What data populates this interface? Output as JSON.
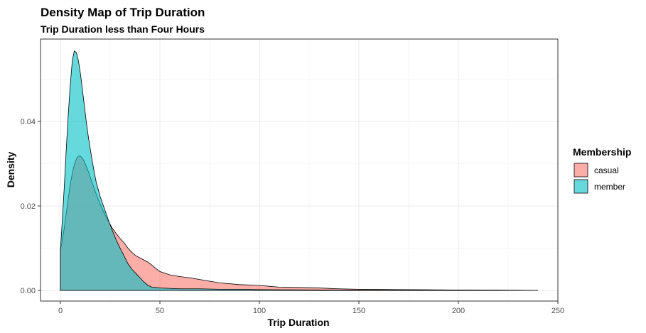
{
  "chart_data": {
    "type": "area",
    "title": "Density Map of Trip Duration",
    "subtitle": "Trip Duration less than Four Hours",
    "xlabel": "Trip Duration",
    "ylabel": "Density",
    "xlim": [
      -10,
      250
    ],
    "ylim": [
      -0.0025,
      0.0595
    ],
    "x_ticks": [
      0,
      50,
      100,
      150,
      200,
      250
    ],
    "y_ticks": [
      0.0,
      0.02,
      0.04
    ],
    "y_tick_labels": [
      "0.00",
      "0.02",
      "0.04"
    ],
    "grid": true,
    "legend": {
      "title": "Membership",
      "position": "right"
    },
    "series": [
      {
        "name": "casual",
        "color": "#F8766D",
        "points": [
          [
            0,
            0.0095
          ],
          [
            1,
            0.012
          ],
          [
            2,
            0.015
          ],
          [
            3,
            0.0185
          ],
          [
            4,
            0.022
          ],
          [
            5,
            0.0252
          ],
          [
            6,
            0.0278
          ],
          [
            7,
            0.0298
          ],
          [
            8,
            0.0311
          ],
          [
            9,
            0.0318
          ],
          [
            10,
            0.0318
          ],
          [
            11,
            0.0314
          ],
          [
            12,
            0.0305
          ],
          [
            14,
            0.0282
          ],
          [
            16,
            0.0255
          ],
          [
            18,
            0.0228
          ],
          [
            20,
            0.0204
          ],
          [
            22,
            0.0183
          ],
          [
            24,
            0.0165
          ],
          [
            26,
            0.0148
          ],
          [
            28,
            0.0135
          ],
          [
            30,
            0.0123
          ],
          [
            32,
            0.0113
          ],
          [
            34,
            0.01
          ],
          [
            36,
            0.009
          ],
          [
            38,
            0.0082
          ],
          [
            40,
            0.0077
          ],
          [
            42,
            0.0072
          ],
          [
            44,
            0.0067
          ],
          [
            46,
            0.006
          ],
          [
            48,
            0.0052
          ],
          [
            50,
            0.0045
          ],
          [
            55,
            0.0037
          ],
          [
            60,
            0.0033
          ],
          [
            65,
            0.003
          ],
          [
            70,
            0.0026
          ],
          [
            75,
            0.0022
          ],
          [
            80,
            0.0018
          ],
          [
            90,
            0.0014
          ],
          [
            100,
            0.0012
          ],
          [
            110,
            0.0008
          ],
          [
            120,
            0.0007
          ],
          [
            130,
            0.0006
          ],
          [
            140,
            0.0004
          ],
          [
            150,
            0.0003
          ],
          [
            160,
            0.00025
          ],
          [
            170,
            0.0002
          ],
          [
            180,
            0.00018
          ],
          [
            190,
            0.00015
          ],
          [
            200,
            0.00012
          ],
          [
            210,
            0.0001
          ],
          [
            220,
            9e-05
          ],
          [
            230,
            6e-05
          ],
          [
            240,
            0.0
          ]
        ]
      },
      {
        "name": "member",
        "color": "#00BFC4",
        "points": [
          [
            0,
            0.0095
          ],
          [
            1,
            0.017
          ],
          [
            2,
            0.025
          ],
          [
            3,
            0.034
          ],
          [
            4,
            0.042
          ],
          [
            5,
            0.049
          ],
          [
            6,
            0.0545
          ],
          [
            7,
            0.0567
          ],
          [
            8,
            0.0563
          ],
          [
            9,
            0.0545
          ],
          [
            10,
            0.0515
          ],
          [
            11,
            0.0478
          ],
          [
            12,
            0.0438
          ],
          [
            13,
            0.04
          ],
          [
            14,
            0.0365
          ],
          [
            15,
            0.0335
          ],
          [
            16,
            0.0306
          ],
          [
            17,
            0.028
          ],
          [
            18,
            0.0256
          ],
          [
            20,
            0.0222
          ],
          [
            22,
            0.0195
          ],
          [
            24,
            0.0168
          ],
          [
            26,
            0.0143
          ],
          [
            28,
            0.012
          ],
          [
            30,
            0.01
          ],
          [
            32,
            0.0082
          ],
          [
            34,
            0.0063
          ],
          [
            36,
            0.005
          ],
          [
            38,
            0.004
          ],
          [
            40,
            0.003
          ],
          [
            42,
            0.002
          ],
          [
            44,
            0.0012
          ],
          [
            46,
            0.0008
          ],
          [
            48,
            0.0007
          ],
          [
            50,
            0.0006
          ],
          [
            55,
            0.0005
          ],
          [
            60,
            0.0004
          ],
          [
            70,
            0.0004
          ],
          [
            80,
            0.0003
          ],
          [
            90,
            0.0003
          ],
          [
            100,
            0.0002
          ],
          [
            120,
            0.00015
          ],
          [
            140,
            0.0001
          ],
          [
            160,
            0.0001
          ],
          [
            180,
            8e-05
          ],
          [
            200,
            6e-05
          ],
          [
            220,
            5e-05
          ],
          [
            240,
            0.0
          ]
        ]
      }
    ]
  }
}
